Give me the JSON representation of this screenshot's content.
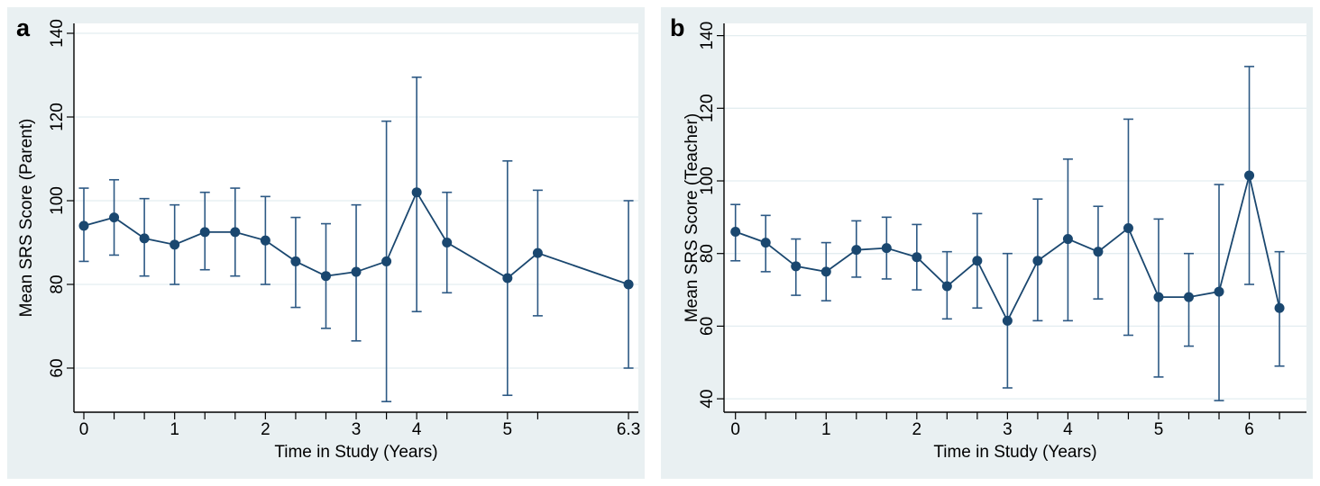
{
  "figure": {
    "background": "#ffffff",
    "panel_background": "#e9f0f2",
    "plot_background": "#ffffff",
    "grid_color": "#e3edf0",
    "axis_color": "#000000",
    "series_color": "#1a476f",
    "errorbar_color": "#2d5984"
  },
  "chart_data": [
    {
      "type": "line",
      "panel_label": "a",
      "title": "",
      "xlabel": "Time in Study (Years)",
      "ylabel": "Mean SRS Score (Parent)",
      "ylim": [
        50,
        142.5
      ],
      "yticks": [
        60,
        80,
        100,
        120,
        140
      ],
      "grid": "horizontal",
      "legend": "none",
      "x_tick_indices": [
        0,
        1,
        2,
        3,
        4,
        5,
        6,
        7,
        8,
        9,
        10,
        11,
        12,
        14,
        15,
        18
      ],
      "x_labels": [
        {
          "i": 0,
          "label": "0"
        },
        {
          "i": 3,
          "label": "1"
        },
        {
          "i": 6,
          "label": "2"
        },
        {
          "i": 9,
          "label": "3"
        },
        {
          "i": 11,
          "label": "4"
        },
        {
          "i": 14,
          "label": "5"
        },
        {
          "i": 18,
          "label": "6.3"
        }
      ],
      "points": [
        {
          "i": 0,
          "years": 0,
          "mean": 94,
          "lo": 85.5,
          "hi": 103
        },
        {
          "i": 1,
          "years": 0.33,
          "mean": 96,
          "lo": 87,
          "hi": 105
        },
        {
          "i": 2,
          "years": 0.67,
          "mean": 91,
          "lo": 82,
          "hi": 100.5
        },
        {
          "i": 3,
          "years": 1,
          "mean": 89.5,
          "lo": 80,
          "hi": 99
        },
        {
          "i": 4,
          "years": 1.33,
          "mean": 92.5,
          "lo": 83.5,
          "hi": 102
        },
        {
          "i": 5,
          "years": 1.67,
          "mean": 92.5,
          "lo": 82,
          "hi": 103
        },
        {
          "i": 6,
          "years": 2,
          "mean": 90.5,
          "lo": 80,
          "hi": 101
        },
        {
          "i": 7,
          "years": 2.33,
          "mean": 85.5,
          "lo": 74.5,
          "hi": 96
        },
        {
          "i": 8,
          "years": 2.67,
          "mean": 82,
          "lo": 69.5,
          "hi": 94.5
        },
        {
          "i": 9,
          "years": 3,
          "mean": 83,
          "lo": 66.5,
          "hi": 99
        },
        {
          "i": 10,
          "years": 3.5,
          "mean": 85.5,
          "lo": 52,
          "hi": 119
        },
        {
          "i": 11,
          "years": 4,
          "mean": 102,
          "lo": 73.5,
          "hi": 129.5
        },
        {
          "i": 12,
          "years": 4.33,
          "mean": 90,
          "lo": 78,
          "hi": 102
        },
        {
          "i": 14,
          "years": 5,
          "mean": 81.5,
          "lo": 53.5,
          "hi": 109.5
        },
        {
          "i": 15,
          "years": 5.33,
          "mean": 87.5,
          "lo": 72.5,
          "hi": 102.5
        },
        {
          "i": 18,
          "years": 6.3,
          "mean": 80,
          "lo": 60,
          "hi": 100
        }
      ]
    },
    {
      "type": "line",
      "panel_label": "b",
      "title": "",
      "xlabel": "Time in Study (Years)",
      "ylabel": "Mean SRS Score (Teacher)",
      "ylim": [
        37,
        143.5
      ],
      "yticks": [
        40,
        60,
        80,
        100,
        120,
        140
      ],
      "grid": "horizontal",
      "legend": "none",
      "x_tick_indices": [
        0,
        1,
        2,
        3,
        4,
        5,
        6,
        7,
        8,
        9,
        10,
        11,
        12,
        13,
        14,
        15,
        16,
        17,
        18
      ],
      "x_labels": [
        {
          "i": 0,
          "label": "0"
        },
        {
          "i": 3,
          "label": "1"
        },
        {
          "i": 6,
          "label": "2"
        },
        {
          "i": 9,
          "label": "3"
        },
        {
          "i": 11,
          "label": "4"
        },
        {
          "i": 14,
          "label": "5"
        },
        {
          "i": 17,
          "label": "6"
        }
      ],
      "points": [
        {
          "i": 0,
          "years": 0,
          "mean": 86,
          "lo": 78,
          "hi": 93.5
        },
        {
          "i": 1,
          "years": 0.33,
          "mean": 83,
          "lo": 75,
          "hi": 90.5
        },
        {
          "i": 2,
          "years": 0.67,
          "mean": 76.5,
          "lo": 68.5,
          "hi": 84
        },
        {
          "i": 3,
          "years": 1,
          "mean": 75,
          "lo": 67,
          "hi": 83
        },
        {
          "i": 4,
          "years": 1.33,
          "mean": 81,
          "lo": 73.5,
          "hi": 89
        },
        {
          "i": 5,
          "years": 1.67,
          "mean": 81.5,
          "lo": 73,
          "hi": 90
        },
        {
          "i": 6,
          "years": 2,
          "mean": 79,
          "lo": 70,
          "hi": 88
        },
        {
          "i": 7,
          "years": 2.33,
          "mean": 71,
          "lo": 62,
          "hi": 80.5
        },
        {
          "i": 8,
          "years": 2.67,
          "mean": 78,
          "lo": 65,
          "hi": 91
        },
        {
          "i": 9,
          "years": 3,
          "mean": 61.5,
          "lo": 43,
          "hi": 80
        },
        {
          "i": 10,
          "years": 3.5,
          "mean": 78,
          "lo": 61.5,
          "hi": 95
        },
        {
          "i": 11,
          "years": 4,
          "mean": 84,
          "lo": 61.5,
          "hi": 106
        },
        {
          "i": 12,
          "years": 4.33,
          "mean": 80.5,
          "lo": 67.5,
          "hi": 93
        },
        {
          "i": 13,
          "years": 4.67,
          "mean": 87,
          "lo": 57.5,
          "hi": 117
        },
        {
          "i": 14,
          "years": 5,
          "mean": 68,
          "lo": 46,
          "hi": 89.5
        },
        {
          "i": 15,
          "years": 5.33,
          "mean": 68,
          "lo": 54.5,
          "hi": 80
        },
        {
          "i": 16,
          "years": 5.67,
          "mean": 69.5,
          "lo": 39.5,
          "hi": 99
        },
        {
          "i": 17,
          "years": 6,
          "mean": 101.5,
          "lo": 71.5,
          "hi": 131.5
        },
        {
          "i": 18,
          "years": 6.3,
          "mean": 65,
          "lo": 49,
          "hi": 80.5
        }
      ]
    }
  ]
}
